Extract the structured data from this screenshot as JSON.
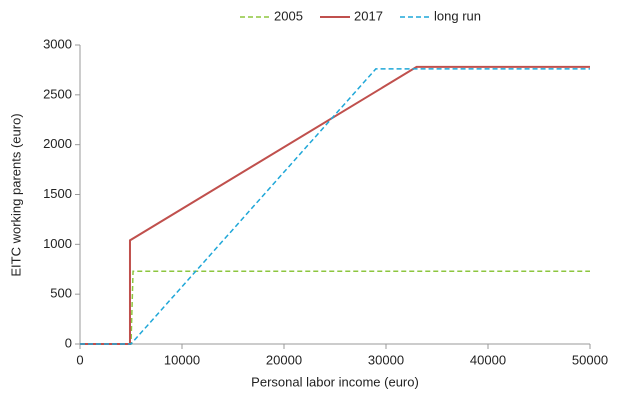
{
  "chart_data": {
    "type": "line",
    "x_label": "Personal labor income (euro)",
    "y_label": "EITC working parents (euro)",
    "xlim": [
      0,
      50000
    ],
    "xticks": [
      0,
      10000,
      20000,
      30000,
      40000,
      50000
    ],
    "ylim": [
      0,
      3000
    ],
    "yticks": [
      0,
      500,
      1000,
      1500,
      2000,
      2500,
      3000
    ],
    "legend": "top",
    "series": [
      {
        "name": "2005",
        "color": "#8dc63f",
        "dash": true,
        "x": [
          0,
          5000,
          5200,
          50000
        ],
        "values": [
          0,
          0,
          730,
          730
        ]
      },
      {
        "name": "2017",
        "color": "#c0504d",
        "dash": false,
        "x": [
          0,
          4900,
          4900,
          33000,
          50000
        ],
        "values": [
          0,
          0,
          1040,
          2780,
          2780
        ]
      },
      {
        "name": "long run",
        "color": "#1fa7d8",
        "dash": true,
        "x": [
          0,
          5000,
          29000,
          50000
        ],
        "values": [
          0,
          0,
          2760,
          2760
        ]
      }
    ]
  }
}
